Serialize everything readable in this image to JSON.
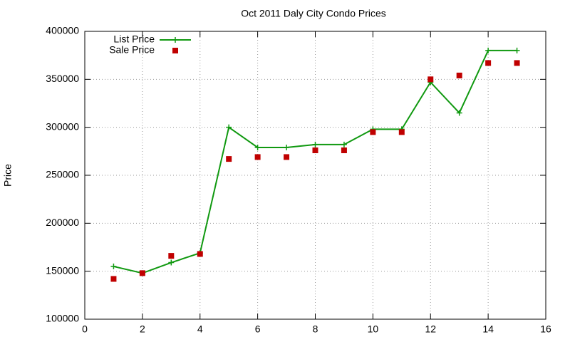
{
  "chart_data": {
    "type": "line",
    "title": "Oct 2011 Daly City Condo Prices",
    "y_label": "Price",
    "x": [
      1,
      2,
      3,
      4,
      5,
      6,
      7,
      8,
      9,
      10,
      11,
      12,
      13,
      14,
      15
    ],
    "series": [
      {
        "name": "List Price",
        "color": "#109910",
        "marker": "plus",
        "values": [
          155000,
          148000,
          159000,
          169000,
          300000,
          279000,
          279000,
          282000,
          282000,
          298000,
          298000,
          347000,
          315000,
          380000,
          380000
        ]
      },
      {
        "name": "Sale Price",
        "color": "#c00000",
        "marker": "square",
        "values": [
          142000,
          148000,
          166000,
          168000,
          267000,
          269000,
          269000,
          276000,
          276000,
          295000,
          295000,
          350000,
          354000,
          367000,
          367000
        ]
      }
    ],
    "xlim": [
      0,
      16
    ],
    "xticks": [
      0,
      2,
      4,
      6,
      8,
      10,
      12,
      14,
      16
    ],
    "ylim": [
      100000,
      400000
    ],
    "yticks": [
      100000,
      150000,
      200000,
      250000,
      300000,
      350000,
      400000
    ],
    "grid": true,
    "legend": "top-left"
  }
}
